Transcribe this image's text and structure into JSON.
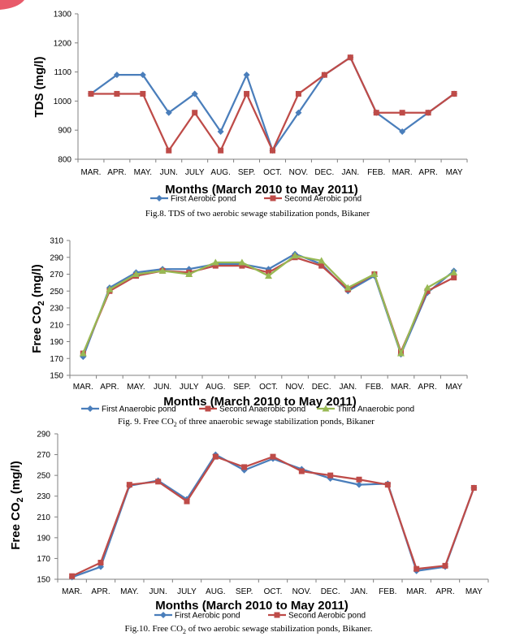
{
  "chart_data": [
    {
      "type": "line",
      "categories": [
        "MAR.",
        "APR.",
        "MAY.",
        "JUN.",
        "JULY",
        "AUG.",
        "SEP.",
        "OCT.",
        "NOV.",
        "DEC.",
        "JAN.",
        "FEB.",
        "MAR.",
        "APR.",
        "MAY"
      ],
      "ylabel": "TDS (mg/l)",
      "xlabel": "Months (March 2010 to May 2011)",
      "ylim": [
        800,
        1300
      ],
      "yticks": [
        "800",
        "900",
        "1000",
        "1100",
        "1200",
        "1300"
      ],
      "grid": false,
      "legend_position": "bottom",
      "series": [
        {
          "name": "First Aerobic pond",
          "color": "#4a7ebb",
          "marker": "diamond",
          "values": [
            1025,
            1090,
            1090,
            960,
            1025,
            895,
            1090,
            830,
            960,
            1090,
            1150,
            960,
            895,
            960,
            1025
          ]
        },
        {
          "name": "Second Aerobic pond",
          "color": "#be4b48",
          "marker": "square",
          "values": [
            1025,
            1025,
            1025,
            830,
            960,
            830,
            1025,
            830,
            1025,
            1090,
            1150,
            960,
            960,
            960,
            1025
          ]
        }
      ],
      "caption": "Fig.8. TDS of two aerobic sewage stabilization ponds, Bikaner"
    },
    {
      "type": "line",
      "categories": [
        "MAR.",
        "APR.",
        "MAY.",
        "JUN.",
        "JULY",
        "AUG.",
        "SEP.",
        "OCT.",
        "NOV.",
        "DEC.",
        "JAN.",
        "FEB.",
        "MAR.",
        "APR.",
        "MAY"
      ],
      "ylabel": "Free CO2 (mg/l)",
      "xlabel": "Months (March 2010 to May 2011)",
      "ylim": [
        150,
        310
      ],
      "yticks": [
        "150",
        "170",
        "190",
        "210",
        "230",
        "250",
        "270",
        "290",
        "310"
      ],
      "grid": false,
      "legend_position": "bottom",
      "series": [
        {
          "name": "First Anaerobic pond",
          "color": "#4a7ebb",
          "marker": "diamond",
          "values": [
            172,
            254,
            272,
            276,
            276,
            282,
            282,
            276,
            294,
            282,
            250,
            268,
            175,
            248,
            274
          ]
        },
        {
          "name": "Second Anaerobic pond",
          "color": "#be4b48",
          "marker": "square",
          "values": [
            176,
            250,
            268,
            274,
            272,
            280,
            280,
            272,
            290,
            280,
            252,
            270,
            178,
            250,
            266
          ]
        },
        {
          "name": "Third Anaerobic pond",
          "color": "#98b954",
          "marker": "triangle",
          "values": [
            176,
            252,
            270,
            274,
            270,
            284,
            284,
            268,
            292,
            286,
            254,
            270,
            176,
            254,
            272
          ]
        }
      ],
      "caption_prefix": "Fig. 9. Free CO",
      "caption_sub": "2",
      "caption_suffix": " of three anaerobic sewage stabilization ponds, Bikaner"
    },
    {
      "type": "line",
      "categories": [
        "MAR.",
        "APR.",
        "MAY.",
        "JUN.",
        "JULY",
        "AUG.",
        "SEP.",
        "OCT.",
        "NOV.",
        "DEC.",
        "JAN.",
        "FEB.",
        "MAR.",
        "APR.",
        "MAY"
      ],
      "ylabel": "Free CO2 (mg/l)",
      "xlabel": "Months (March 2010 to May 2011)",
      "ylim": [
        150,
        290
      ],
      "yticks": [
        "150",
        "170",
        "190",
        "210",
        "230",
        "250",
        "270",
        "290"
      ],
      "grid": false,
      "legend_position": "bottom",
      "series": [
        {
          "name": "First Aerobic pond",
          "color": "#4a7ebb",
          "marker": "diamond",
          "values": [
            152,
            162,
            240,
            245,
            227,
            270,
            255,
            266,
            256,
            247,
            241,
            242,
            158,
            162,
            238
          ]
        },
        {
          "name": "Second Aerobic pond",
          "color": "#be4b48",
          "marker": "square",
          "values": [
            153,
            166,
            241,
            244,
            225,
            268,
            258,
            268,
            254,
            250,
            246,
            241,
            160,
            163,
            238
          ]
        }
      ],
      "caption_prefix": "Fig.10. Free CO",
      "caption_sub": "2",
      "caption_suffix": " of two aerobic sewage stabilization ponds, Bikaner."
    }
  ]
}
